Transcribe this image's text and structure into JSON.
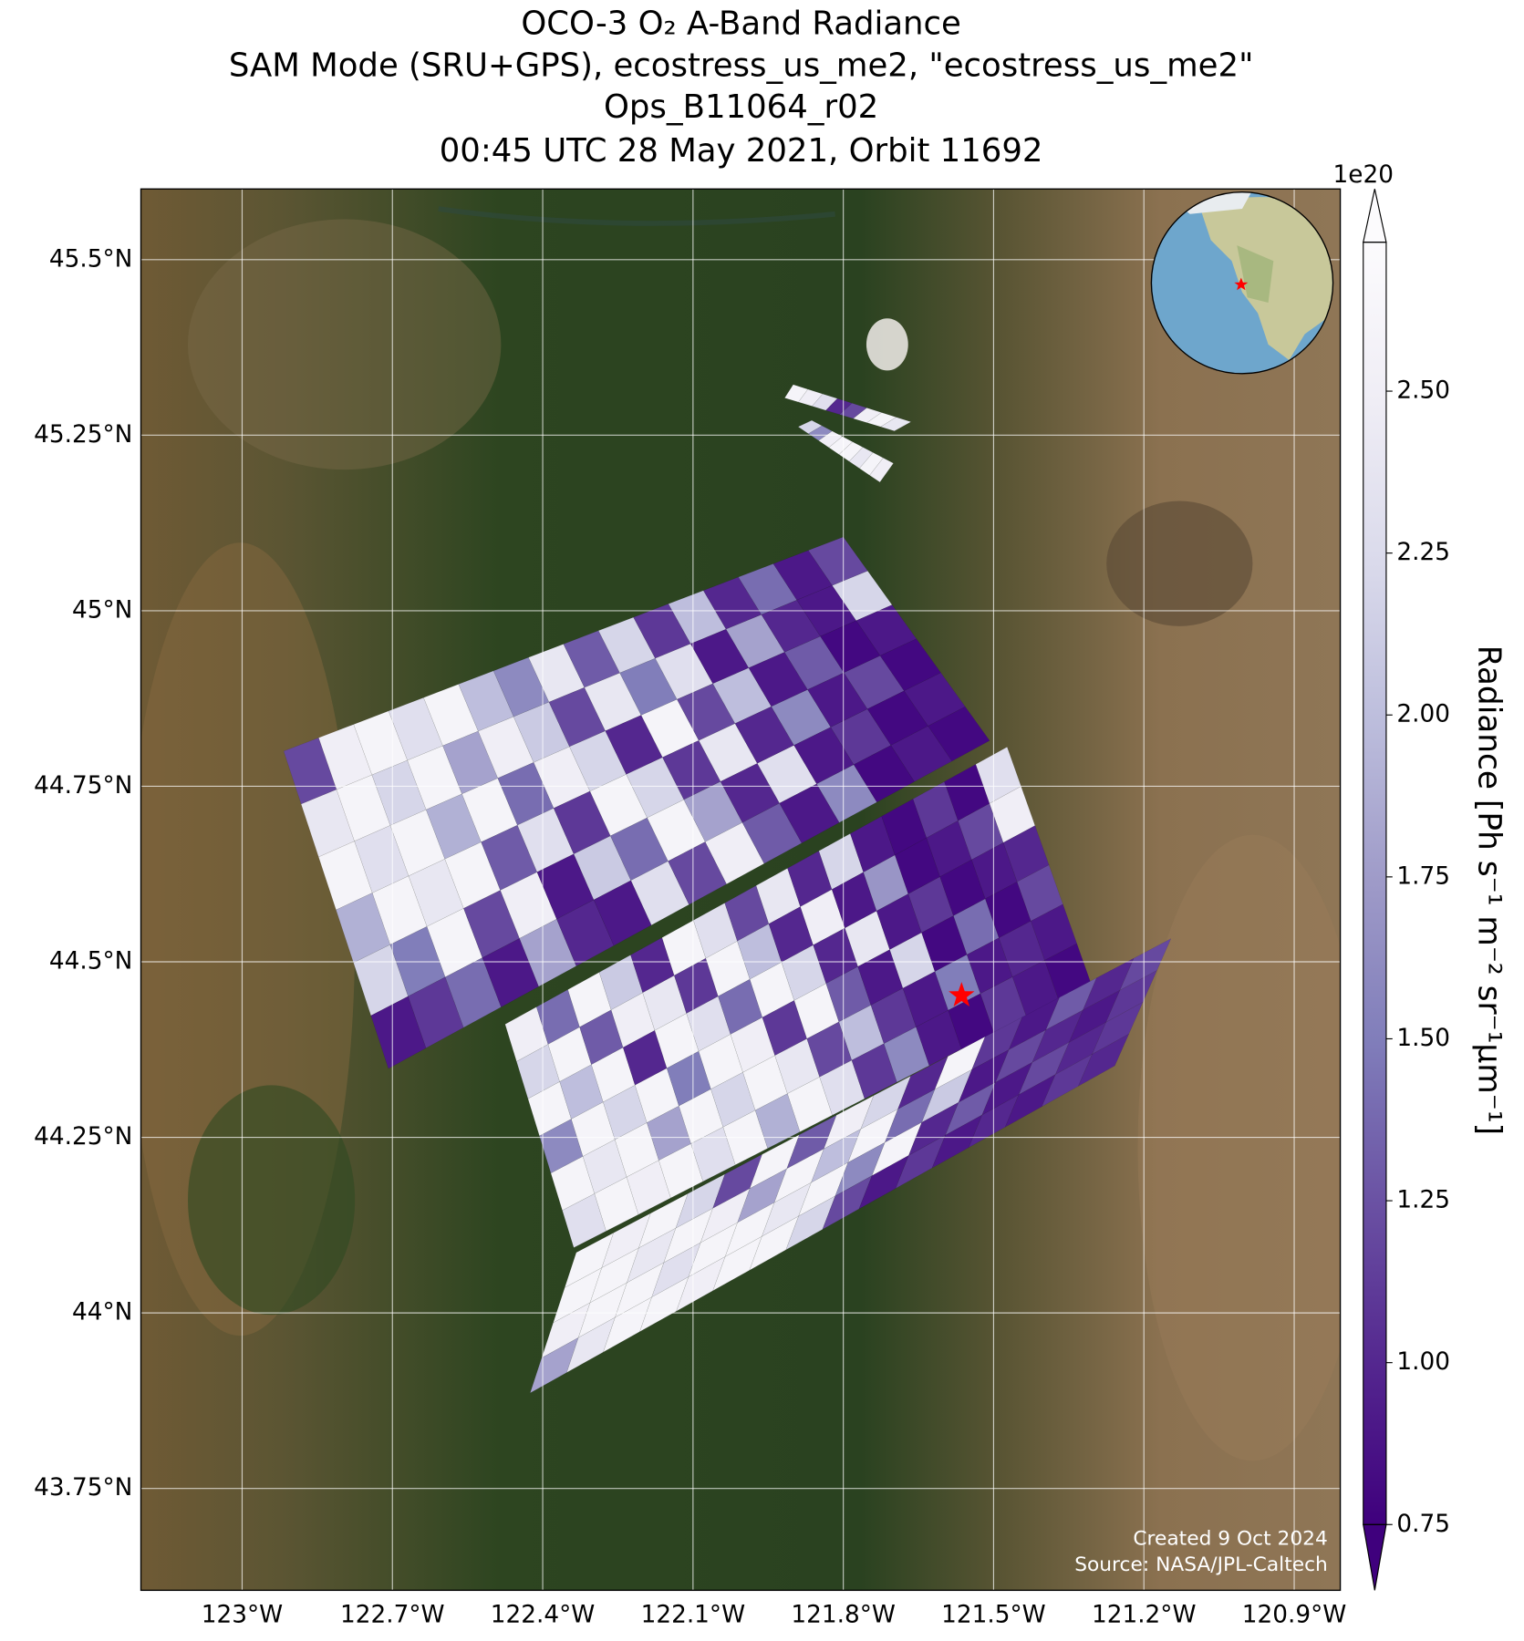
{
  "chart_data": {
    "type": "map",
    "title": [
      "OCO-3 O₂ A-Band Radiance",
      "SAM Mode (SRU+GPS), ecostress_us_me2, \"ecostress_us_me2\"",
      "Ops_B11064_r02",
      "00:45 UTC 28 May 2021, Orbit 11692"
    ],
    "xlim": [
      -123.202,
      -120.808
    ],
    "ylim": [
      43.605,
      45.6006
    ],
    "xticks": [
      {
        "value": -123.0,
        "label": "123°W"
      },
      {
        "value": -122.7,
        "label": "122.7°W"
      },
      {
        "value": -122.4,
        "label": "122.4°W"
      },
      {
        "value": -122.1,
        "label": "122.1°W"
      },
      {
        "value": -121.8,
        "label": "121.8°W"
      },
      {
        "value": -121.5,
        "label": "121.5°W"
      },
      {
        "value": -121.2,
        "label": "121.2°W"
      },
      {
        "value": -120.9,
        "label": "120.9°W"
      }
    ],
    "yticks": [
      {
        "value": 43.75,
        "label": "43.75°N"
      },
      {
        "value": 44.0,
        "label": "44°N"
      },
      {
        "value": 44.25,
        "label": "44.25°N"
      },
      {
        "value": 44.5,
        "label": "44.5°N"
      },
      {
        "value": 44.75,
        "label": "44.75°N"
      },
      {
        "value": 45.0,
        "label": "45°N"
      },
      {
        "value": 45.25,
        "label": "45.25°N"
      },
      {
        "value": 45.5,
        "label": "45.5°N"
      }
    ],
    "grid": true,
    "swaths": [
      {
        "corners": [
          [
            -121.9,
            45.322
          ],
          [
            -121.665,
            45.269
          ],
          [
            -121.698,
            45.256
          ],
          [
            -121.917,
            45.303
          ]
        ],
        "values": [
          [
            2.6,
            2.5,
            2.3,
            1.0,
            1.2,
            2.5,
            2.6,
            2.4
          ]
        ]
      },
      {
        "corners": [
          [
            -121.863,
            45.271
          ],
          [
            -121.7,
            45.21
          ],
          [
            -121.727,
            45.183
          ],
          [
            -121.89,
            45.262
          ]
        ],
        "values": [
          [
            2.2,
            1.6,
            2.5,
            2.6,
            2.6,
            2.4,
            2.6,
            2.5
          ]
        ]
      },
      {
        "corners": [
          [
            -122.917,
            44.8
          ],
          [
            -121.8,
            45.105
          ],
          [
            -121.508,
            44.815
          ],
          [
            -122.708,
            44.348
          ]
        ],
        "values": [
          [
            1.2,
            2.5,
            2.6,
            2.3,
            2.6,
            2.0,
            1.6,
            2.4,
            1.3,
            2.2,
            1.1,
            2.0,
            1.0,
            1.4,
            0.9,
            1.2
          ],
          [
            2.4,
            2.6,
            2.2,
            2.6,
            1.8,
            2.5,
            2.1,
            1.2,
            2.4,
            1.5,
            2.3,
            0.9,
            1.8,
            1.0,
            0.9,
            2.2
          ],
          [
            2.6,
            2.3,
            2.6,
            1.9,
            2.6,
            1.4,
            2.5,
            2.2,
            1.0,
            2.6,
            1.2,
            2.0,
            0.9,
            1.3,
            0.8,
            0.9
          ],
          [
            1.9,
            2.6,
            2.4,
            2.6,
            1.3,
            2.3,
            1.1,
            2.6,
            2.2,
            1.1,
            2.4,
            1.0,
            1.6,
            0.9,
            1.2,
            0.8
          ],
          [
            2.2,
            1.5,
            2.6,
            1.2,
            2.5,
            0.9,
            2.1,
            1.4,
            2.6,
            1.8,
            1.0,
            2.3,
            0.9,
            1.1,
            0.8,
            0.9
          ],
          [
            0.9,
            1.1,
            1.4,
            0.9,
            1.8,
            1.0,
            0.9,
            2.3,
            1.2,
            2.5,
            1.3,
            0.9,
            1.6,
            0.8,
            0.9,
            0.8
          ]
        ]
      },
      {
        "corners": [
          [
            -122.475,
            44.411
          ],
          [
            -121.473,
            44.806
          ],
          [
            -121.306,
            44.47
          ],
          [
            -122.338,
            44.093
          ]
        ],
        "values": [
          [
            2.5,
            1.4,
            2.6,
            2.1,
            1.0,
            2.6,
            2.3,
            1.2,
            2.4,
            1.0,
            2.2,
            0.9,
            0.8,
            1.1,
            0.8,
            2.3
          ],
          [
            2.2,
            2.6,
            1.3,
            2.5,
            2.4,
            1.1,
            2.6,
            2.0,
            1.0,
            2.5,
            0.9,
            1.7,
            0.8,
            0.9,
            1.2,
            2.5
          ],
          [
            2.6,
            2.0,
            2.6,
            1.0,
            2.6,
            2.3,
            1.4,
            2.6,
            2.2,
            1.0,
            2.4,
            0.9,
            1.1,
            0.8,
            0.9,
            1.0
          ],
          [
            1.6,
            2.6,
            2.2,
            2.6,
            1.5,
            2.6,
            2.5,
            1.1,
            2.6,
            1.3,
            0.9,
            2.2,
            0.8,
            1.4,
            0.8,
            1.2
          ],
          [
            2.6,
            2.4,
            2.6,
            1.8,
            2.6,
            2.2,
            2.6,
            2.4,
            1.2,
            2.0,
            1.1,
            0.9,
            1.5,
            0.9,
            1.0,
            0.9
          ],
          [
            2.3,
            2.6,
            2.5,
            2.6,
            2.3,
            2.6,
            1.9,
            2.6,
            2.3,
            1.1,
            1.6,
            0.9,
            0.8,
            1.1,
            0.9,
            0.8
          ]
        ]
      },
      {
        "corners": [
          [
            -122.333,
            44.086
          ],
          [
            -121.146,
            44.533
          ],
          [
            -121.258,
            44.352
          ],
          [
            -122.425,
            43.886
          ]
        ],
        "values": [
          [
            2.6,
            2.5,
            2.6,
            2.2,
            1.2,
            2.6,
            1.3,
            2.5,
            2.2,
            1.0,
            2.6,
            1.1,
            0.9,
            1.3,
            1.0,
            1.2
          ],
          [
            2.6,
            2.6,
            2.4,
            2.6,
            2.5,
            1.8,
            2.6,
            2.0,
            2.6,
            1.4,
            2.1,
            0.9,
            1.2,
            1.0,
            0.9,
            1.1
          ],
          [
            2.5,
            2.6,
            2.6,
            2.3,
            2.6,
            2.6,
            2.4,
            2.6,
            1.6,
            2.6,
            1.0,
            1.3,
            0.9,
            1.2,
            1.0,
            1.1
          ],
          [
            1.8,
            2.4,
            2.6,
            2.6,
            2.5,
            2.6,
            2.6,
            2.2,
            1.2,
            0.9,
            1.1,
            0.9,
            1.0,
            0.9,
            1.1,
            1.0
          ]
        ]
      }
    ],
    "site": {
      "lon": -121.564,
      "lat": 44.452,
      "color": "#ff0000"
    },
    "colorbar": {
      "label": "Radiance [Ph s⁻¹ m⁻² sr⁻¹μm⁻¹]",
      "multiplier": "1e20",
      "clim": [
        0.75,
        2.73
      ],
      "ticks": [
        {
          "value": 0.75,
          "label": "0.75"
        },
        {
          "value": 1.0,
          "label": "1.00"
        },
        {
          "value": 1.25,
          "label": "1.25"
        },
        {
          "value": 1.5,
          "label": "1.50"
        },
        {
          "value": 1.75,
          "label": "1.75"
        },
        {
          "value": 2.0,
          "label": "2.00"
        },
        {
          "value": 2.25,
          "label": "2.25"
        },
        {
          "value": 2.5,
          "label": "2.50"
        }
      ],
      "colormap": [
        "#3f007d",
        "#54278f",
        "#6a51a3",
        "#807dba",
        "#9e9ac8",
        "#bcbddc",
        "#dadaeb",
        "#efedf5",
        "#fcfbfd"
      ]
    },
    "credits": [
      "Created 9 Oct 2024",
      "Source: NASA/JPL-Caltech"
    ]
  }
}
